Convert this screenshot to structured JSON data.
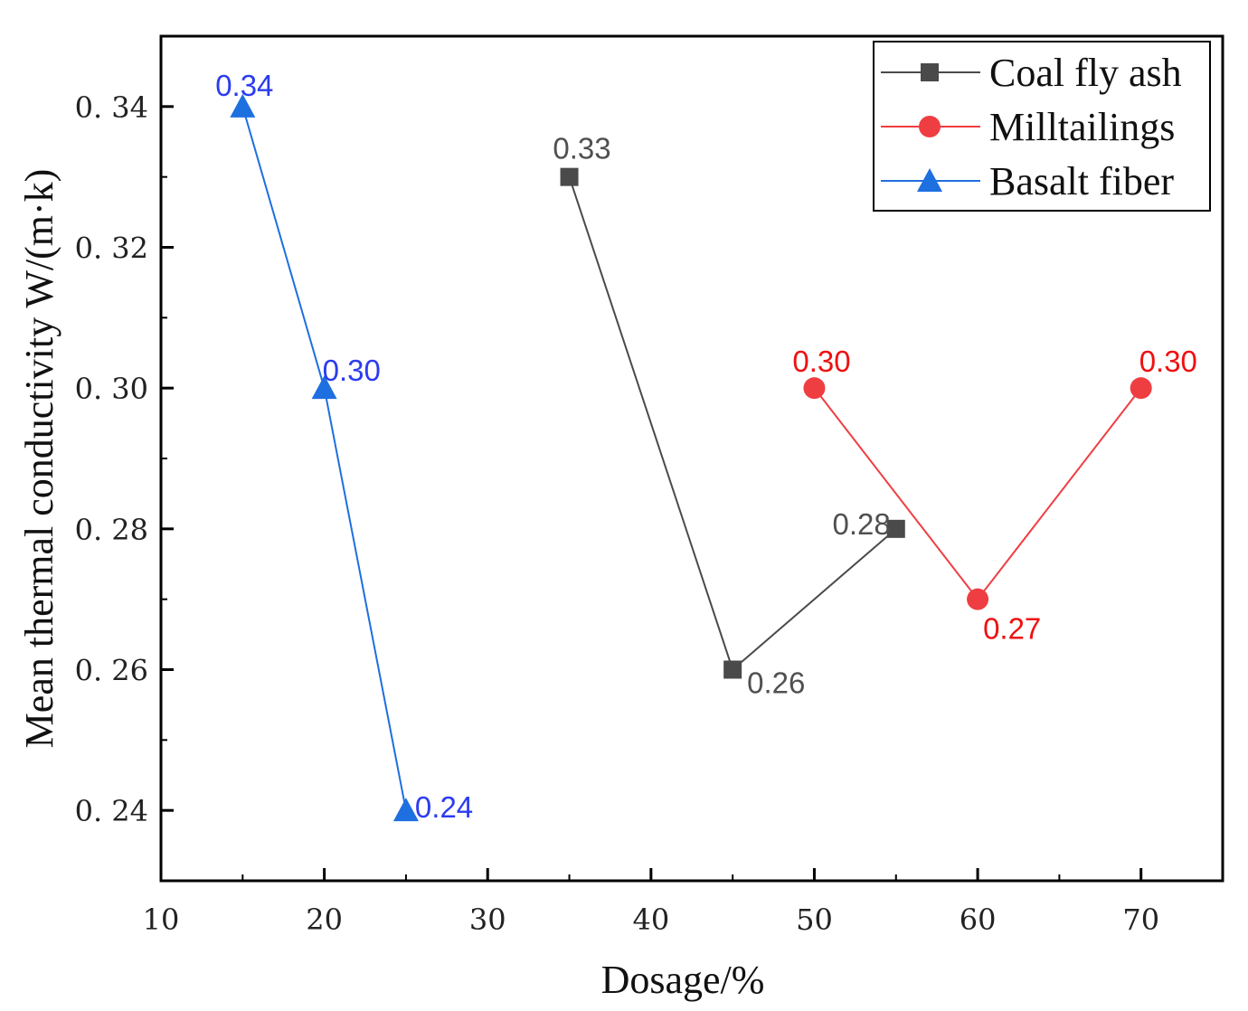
{
  "chart_data": {
    "type": "line",
    "xlabel": "Dosage/%",
    "ylabel": "Mean thermal conductivity W/(m·k)",
    "xlim": [
      10,
      75
    ],
    "ylim": [
      0.23,
      0.35
    ],
    "xticks": [
      10,
      20,
      30,
      40,
      50,
      60,
      70
    ],
    "yticks": [
      0.24,
      0.26,
      0.28,
      0.3,
      0.32,
      0.34
    ],
    "ytick_labels": [
      "0. 24",
      "0. 26",
      "0. 28",
      "0. 30",
      "0. 32",
      "0. 34"
    ],
    "legend_position": "top-right",
    "series": [
      {
        "name": "Coal fly ash",
        "color": "#4a4a4a",
        "label_color": "#505050",
        "marker": "square",
        "x": [
          35,
          45,
          55
        ],
        "y": [
          0.33,
          0.26,
          0.28
        ],
        "labels": [
          "0.33",
          "0.26",
          "0.28"
        ]
      },
      {
        "name": "Milltailings",
        "color": "#ef3e42",
        "label_color": "#ee1111",
        "marker": "circle",
        "x": [
          50,
          60,
          70
        ],
        "y": [
          0.3,
          0.27,
          0.3
        ],
        "labels": [
          "0.30",
          "0.27",
          "0.30"
        ]
      },
      {
        "name": "Basalt fiber",
        "color": "#1e6fe0",
        "label_color": "#2b3cf0",
        "marker": "triangle",
        "x": [
          15,
          20,
          25
        ],
        "y": [
          0.34,
          0.3,
          0.24
        ],
        "labels": [
          "0.34",
          "0.30",
          "0.24"
        ]
      }
    ]
  }
}
